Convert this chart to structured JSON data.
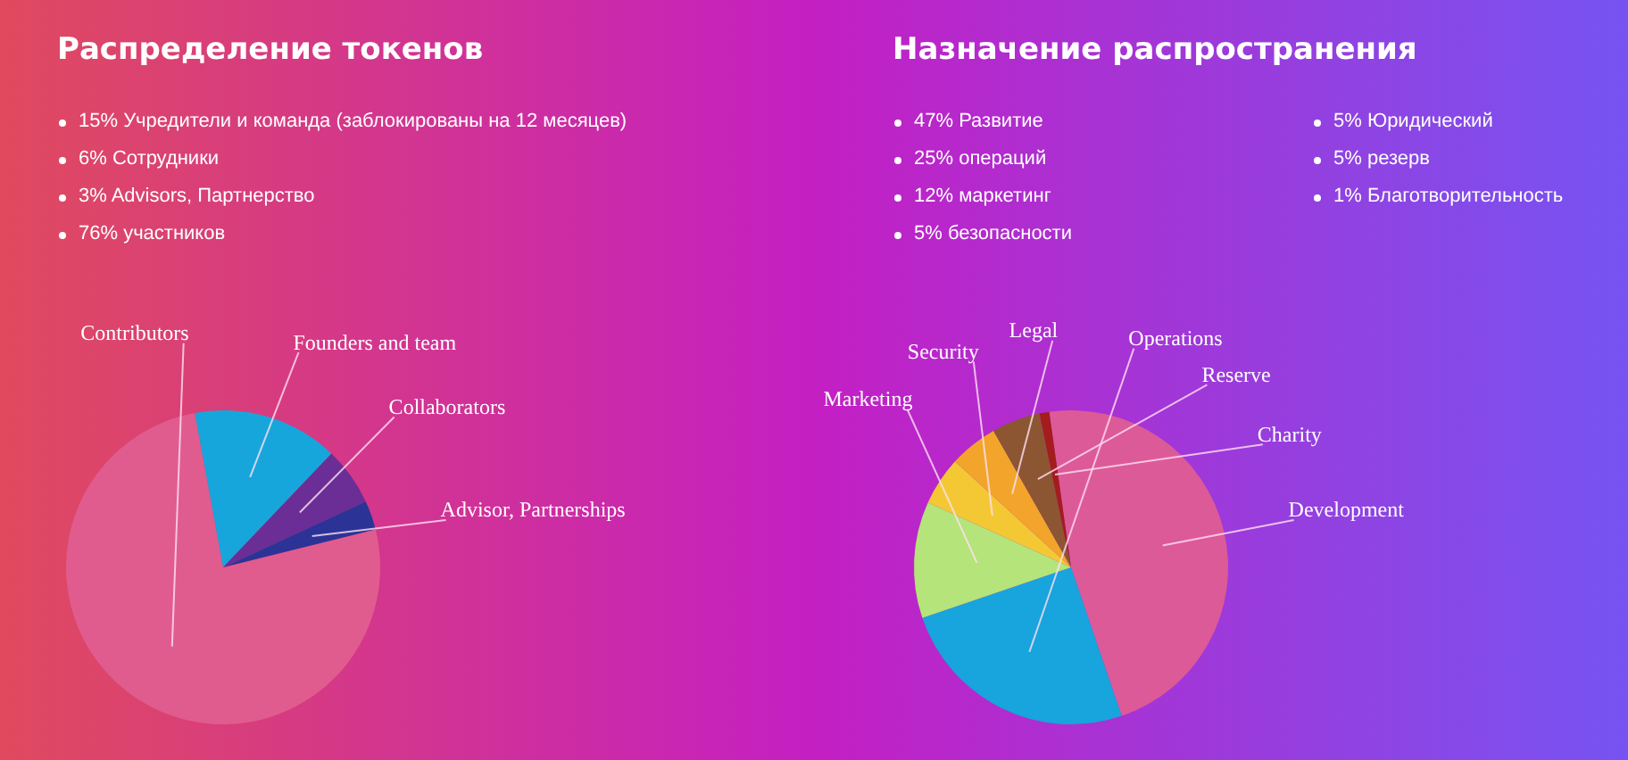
{
  "chart_data": [
    {
      "type": "pie",
      "title": "Распределение токенов",
      "categories": [
        "Contributors",
        "Founders and team",
        "Collaborators",
        "Advisor, Partnerships"
      ],
      "values": [
        76,
        15,
        6,
        3
      ],
      "colors": [
        "#e05c8e",
        "#17a6dc",
        "#6a2e96",
        "#2b3496"
      ],
      "legend": false,
      "annotations": [
        "15% Учредители и команда (заблокированы на 12 месяцев)",
        "6% Сотрудники",
        "3% Advisors, Партнерство",
        "76% участников"
      ]
    },
    {
      "type": "pie",
      "title": "Назначение распространения",
      "categories": [
        "Development",
        "Operations",
        "Marketing",
        "Security",
        "Legal",
        "Reserve",
        "Charity"
      ],
      "values": [
        47,
        25,
        12,
        5,
        5,
        5,
        1
      ],
      "colors": [
        "#dd5a98",
        "#18a4dc",
        "#b4e47a",
        "#f4c834",
        "#f2a52a",
        "#8c5632",
        "#a41c1c"
      ],
      "legend": false,
      "annotations": [
        "47% Развитие",
        "25% операций",
        "12% маркетинг",
        "5% безопасности",
        "5% Юридический",
        "5% резерв",
        "1% Благотворительность"
      ]
    }
  ]
}
